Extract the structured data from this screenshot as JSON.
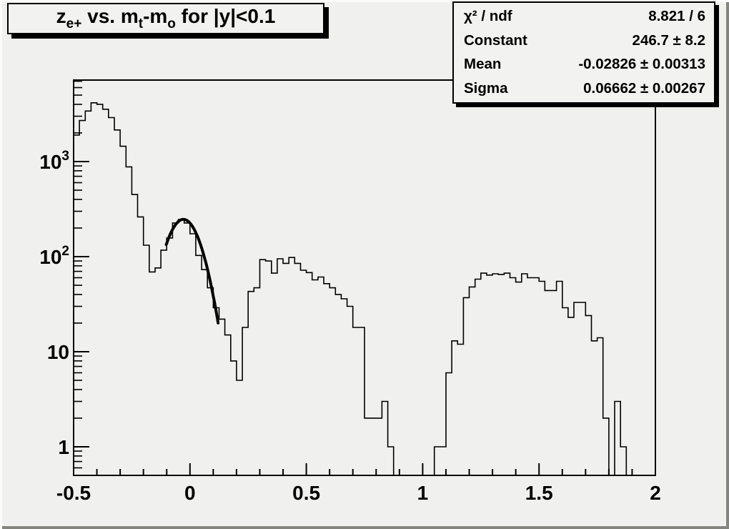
{
  "title_box": {
    "plain": "z_{e+} vs. m_{t}-m_{o} for |y|<0.1",
    "segments": [
      {
        "text": "z",
        "script": "normal"
      },
      {
        "text": "e+",
        "script": "sub"
      },
      {
        "text": " vs. m",
        "script": "normal"
      },
      {
        "text": "t",
        "script": "sub"
      },
      {
        "text": "-m",
        "script": "normal"
      },
      {
        "text": "o",
        "script": "sub"
      },
      {
        "text": " for |y|<0.1",
        "script": "normal"
      }
    ]
  },
  "stats_box": {
    "rows": [
      {
        "label": "χ² / ndf",
        "value": "8.821 / 6"
      },
      {
        "label": "Constant",
        "value": "246.7 ± 8.2"
      },
      {
        "label": "Mean",
        "value": "-0.02826 ± 0.00313"
      },
      {
        "label": "Sigma",
        "value": "0.06662 ± 0.00267"
      }
    ]
  },
  "axes": {
    "x": {
      "tick_labels": [
        "-0.5",
        "0",
        "0.5",
        "1",
        "1.5",
        "2"
      ],
      "tick_values": [
        -0.5,
        0,
        0.5,
        1,
        1.5,
        2
      ],
      "minor_step": 0.1
    },
    "y": {
      "scale": "log",
      "decade_labels": [
        {
          "base": "1",
          "sup": ""
        },
        {
          "base": "10",
          "sup": ""
        },
        {
          "base": "10",
          "sup": "2"
        },
        {
          "base": "10",
          "sup": "3"
        }
      ],
      "decade_values": [
        1,
        10,
        100,
        1000
      ]
    }
  },
  "chart_data": {
    "type": "line",
    "variant": "ROOT TH1 step histogram, unfilled, log-y",
    "title": "z_{e+} vs. m_{t}-m_{o} for |y|<0.1",
    "xlabel": "",
    "ylabel": "",
    "xlim": [
      -0.5,
      2
    ],
    "ylim_log": [
      0.5,
      7200
    ],
    "grid": false,
    "legend": false,
    "bins": {
      "start": -0.5,
      "width": 0.025,
      "count": 100
    },
    "counts": [
      1900,
      2700,
      3400,
      4150,
      4000,
      3550,
      2900,
      2150,
      1450,
      880,
      450,
      262,
      132,
      69,
      76,
      117,
      157,
      226,
      246,
      226,
      174,
      103,
      73,
      47,
      29,
      22,
      15,
      8,
      5,
      18,
      43,
      47,
      93,
      90,
      67,
      95,
      85,
      98,
      85,
      72,
      68,
      57,
      61,
      52,
      47,
      40,
      36,
      30,
      18,
      18,
      2,
      2,
      2,
      3,
      1,
      0,
      0,
      0,
      0,
      0,
      0,
      0,
      1,
      1,
      6,
      13,
      12,
      37,
      48,
      58,
      67,
      64,
      66,
      65,
      67,
      60,
      54,
      66,
      60,
      60,
      55,
      44,
      44,
      55,
      29,
      23,
      33,
      33,
      24,
      13,
      14,
      2,
      0,
      3,
      1,
      0,
      0,
      0,
      0,
      0
    ],
    "fit": {
      "model": "gaussian",
      "constant": 246.7,
      "mean": -0.02826,
      "sigma": 0.06662,
      "chi2": 8.821,
      "ndf": 6,
      "draw_range": [
        -0.102,
        0.121
      ],
      "line_width": 4,
      "color": "#000000"
    }
  },
  "colors": {
    "canvas_bg": "#f0f0ee",
    "pave_bg": "#f2f2f0",
    "line": "#000000",
    "text": "#000000",
    "bevel_light": "#fcfcfa",
    "bevel_dark": "#84847f"
  }
}
